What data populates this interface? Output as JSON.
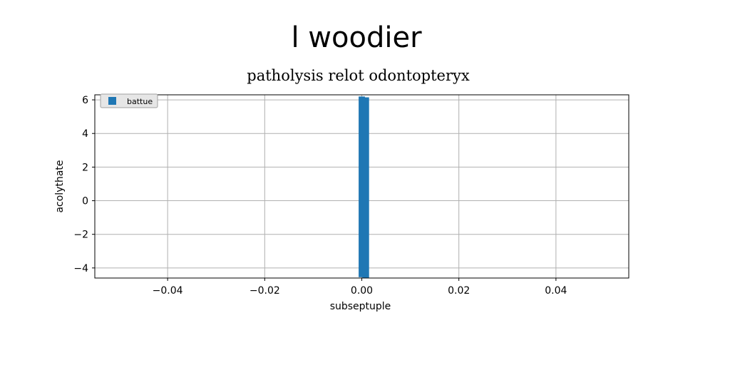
{
  "figure": {
    "suptitle": "l woodier"
  },
  "chart_data": {
    "type": "bar",
    "title": "patholysis relot odontopteryx",
    "xlabel": "subseptuple",
    "ylabel": "acolythate",
    "xlim": [
      -0.055,
      0.055
    ],
    "ylim": [
      -4.6,
      6.3
    ],
    "xticks": [
      -0.04,
      -0.02,
      0.0,
      0.02,
      0.04
    ],
    "xtick_labels": [
      "−0.04",
      "−0.02",
      "0.00",
      "0.02",
      "0.04"
    ],
    "yticks": [
      -4,
      -2,
      0,
      2,
      4,
      6
    ],
    "ytick_labels": [
      "−4",
      "−2",
      "0",
      "2",
      "4",
      "6"
    ],
    "grid": true,
    "legend_position": "top-left",
    "series": [
      {
        "name": "battue",
        "color": "#1f77b4",
        "bars": [
          {
            "x": 0.0,
            "width": 0.0013,
            "bottom": -4.55,
            "top": 6.2
          },
          {
            "x": 0.0008,
            "width": 0.0014,
            "bottom": -4.6,
            "top": 6.15
          }
        ]
      }
    ]
  }
}
